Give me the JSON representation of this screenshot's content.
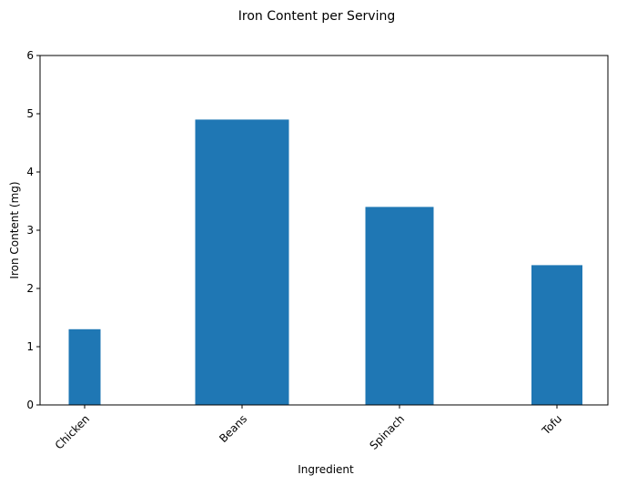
{
  "chart_data": {
    "type": "bar",
    "title": "Iron Content per Serving",
    "xlabel": "Ingredient",
    "ylabel": "Iron Content (mg)",
    "categories": [
      "Chicken",
      "Beans",
      "Spinach",
      "Tofu"
    ],
    "values": [
      1.3,
      4.9,
      3.4,
      2.4
    ],
    "ylim": [
      0,
      6
    ],
    "yticks": [
      "0",
      "1",
      "2",
      "3",
      "4",
      "5",
      "6"
    ],
    "grid": false,
    "bar_color": "#1f77b4"
  }
}
